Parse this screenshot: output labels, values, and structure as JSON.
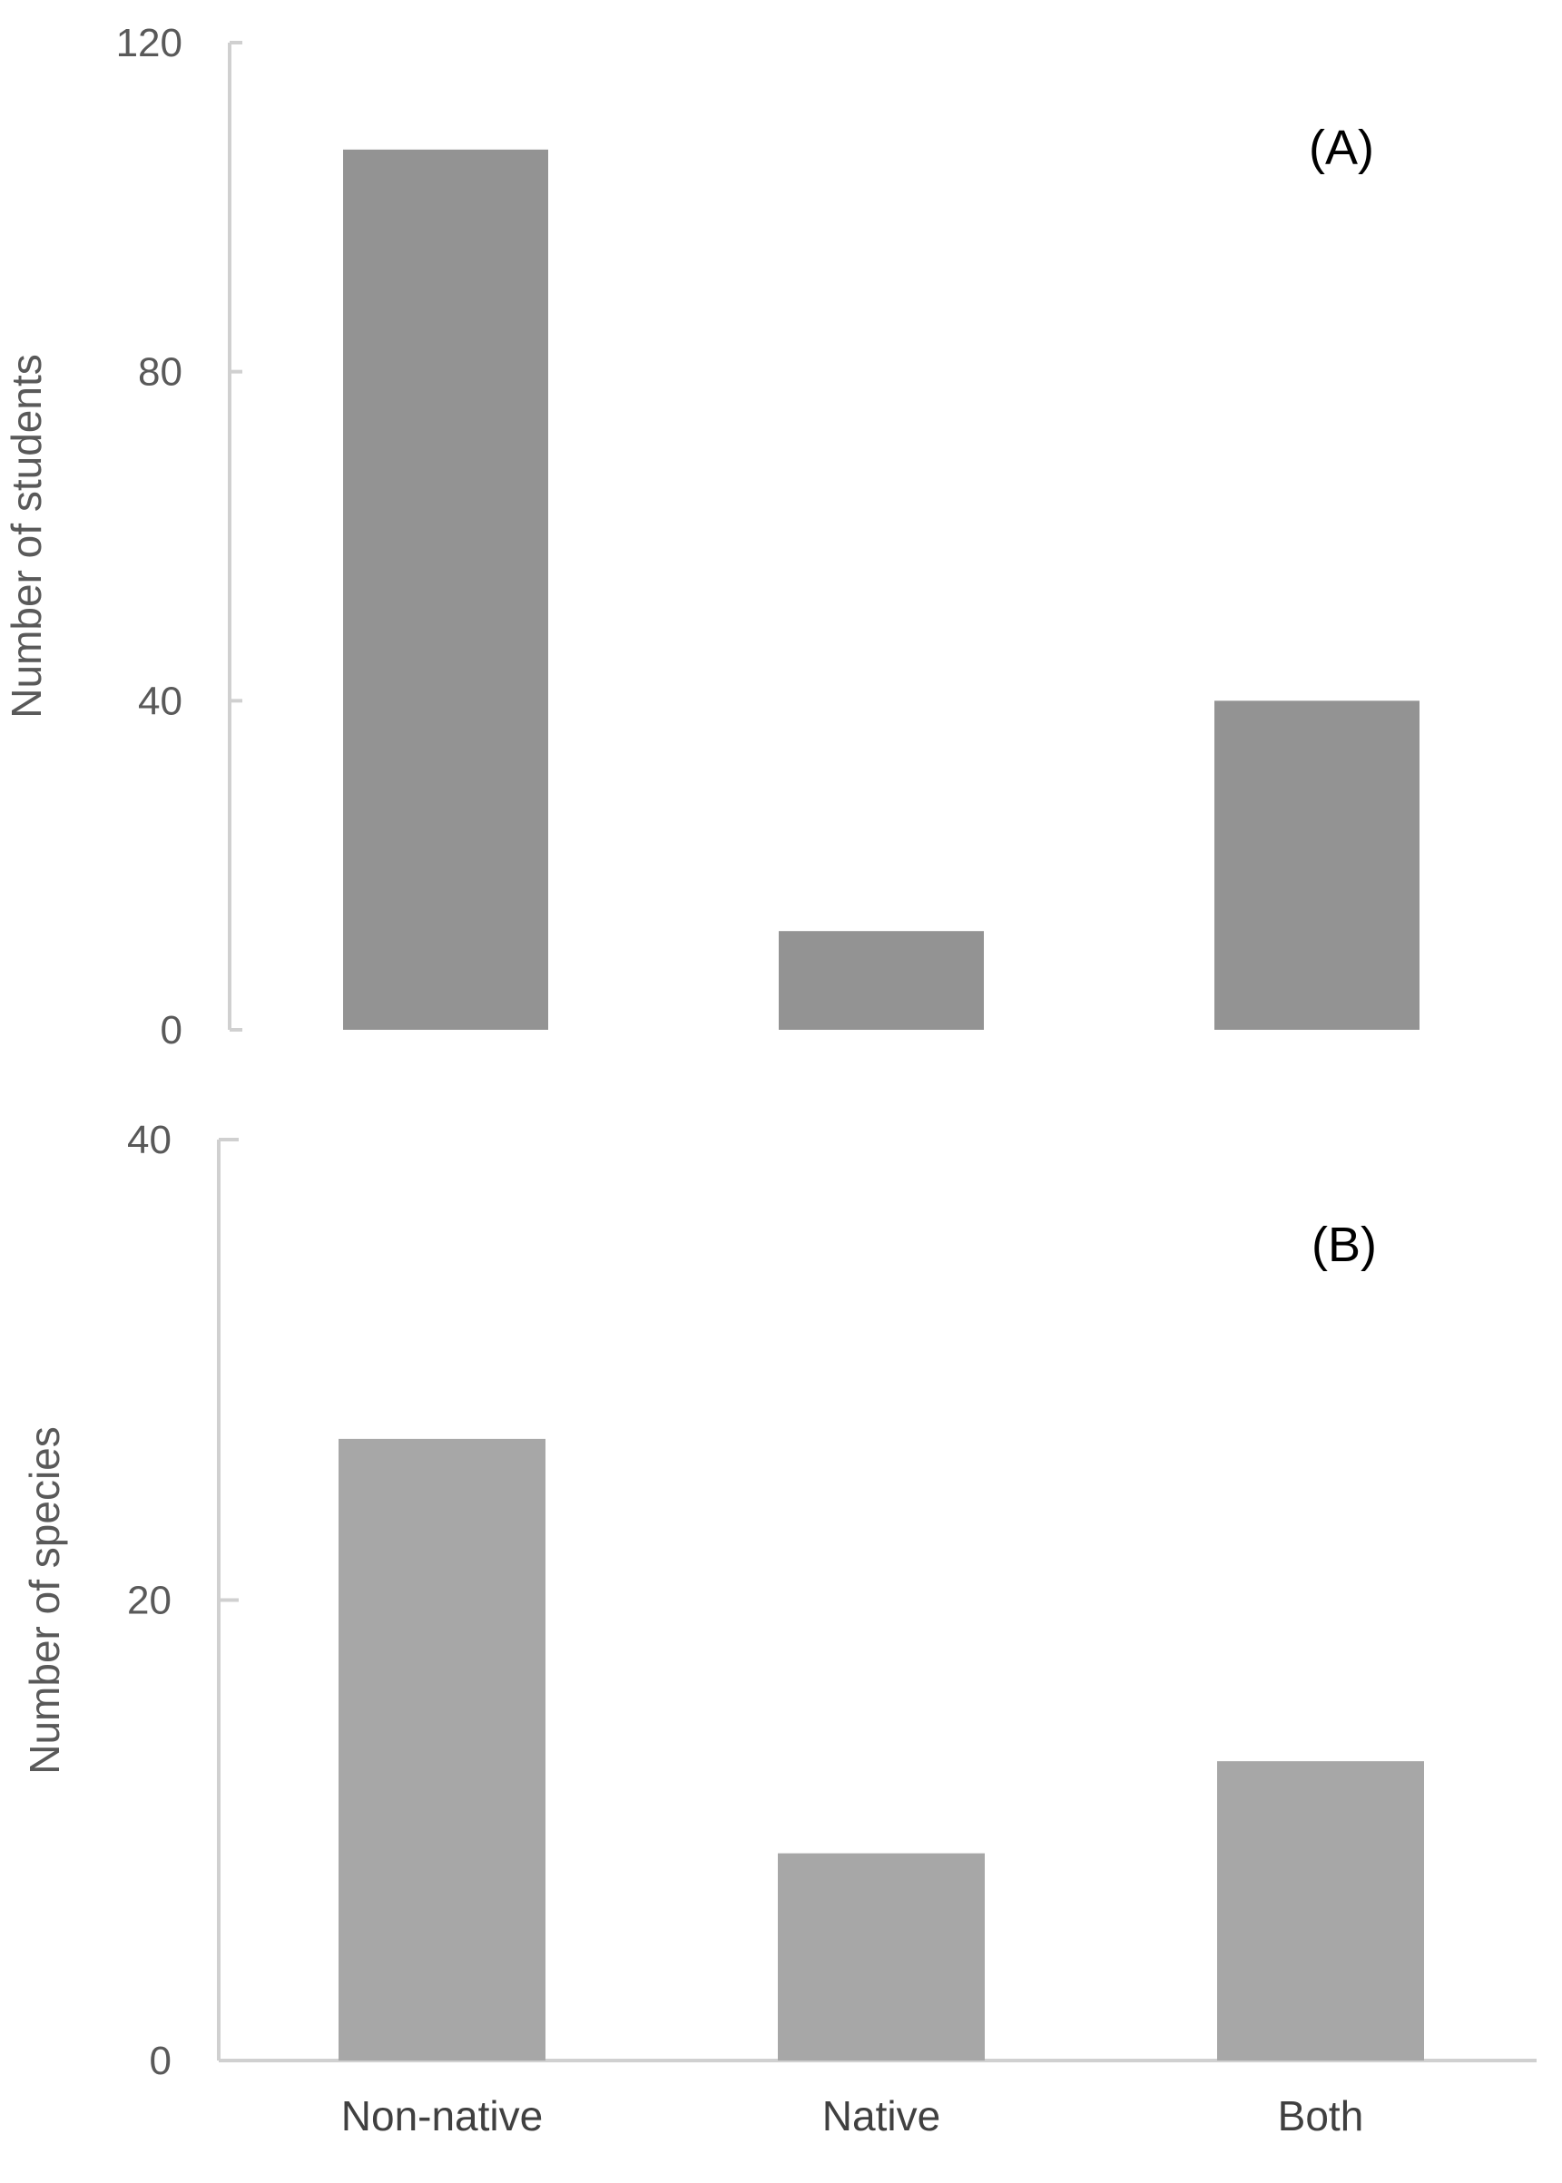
{
  "chart_data": [
    {
      "type": "bar",
      "panel": "(A)",
      "categories": [
        "Non-native",
        "Native",
        "Both"
      ],
      "values": [
        107,
        12,
        40
      ],
      "ylabel": "Number of students",
      "xlabel": "",
      "ylim": [
        0,
        120
      ],
      "yticks": [
        0,
        40,
        80,
        120
      ],
      "bar_color": "#939393",
      "grid": false,
      "legend": "none"
    },
    {
      "type": "bar",
      "panel": "(B)",
      "categories": [
        "Non-native",
        "Native",
        "Both"
      ],
      "values": [
        27,
        9,
        13
      ],
      "ylabel": "Number of species",
      "xlabel": "",
      "ylim": [
        0,
        40
      ],
      "yticks": [
        0,
        20,
        40
      ],
      "bar_color": "#a7a7a7",
      "grid": false,
      "legend": "none"
    }
  ],
  "colors": {
    "axis": "#d0d0d0",
    "text": "#595959"
  }
}
